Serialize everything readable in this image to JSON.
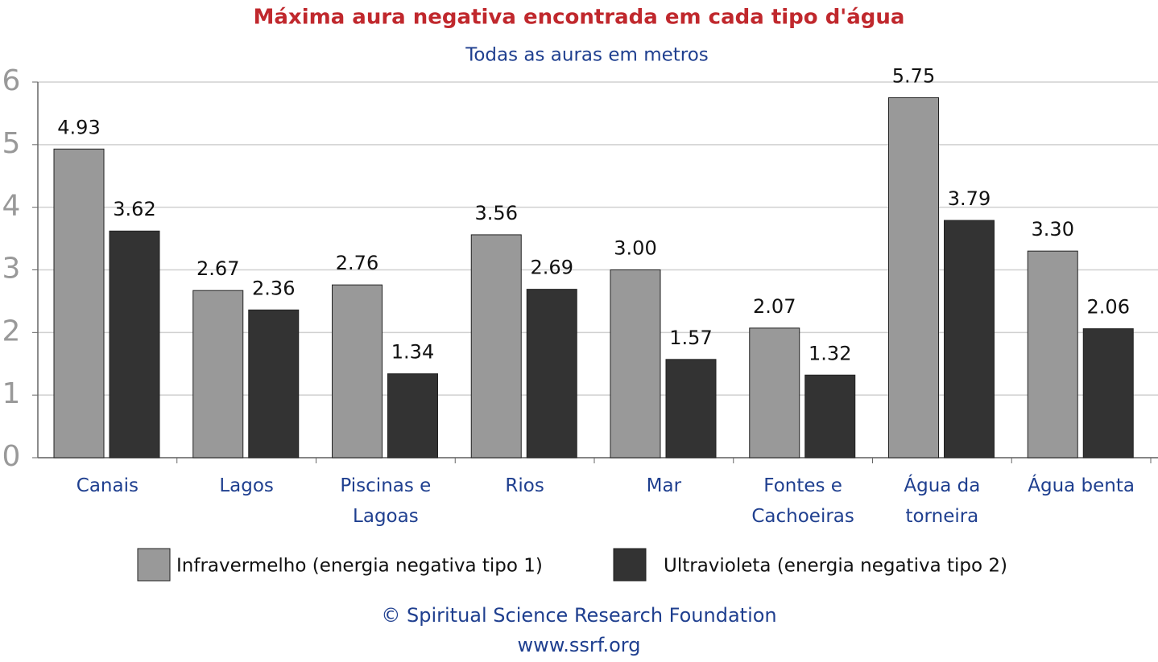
{
  "chart_data": {
    "type": "bar",
    "title": "Máxima aura negativa encontrada em cada tipo d'água",
    "subtitle": "Todas as auras em metros",
    "categories": [
      "Canais",
      "Lagos",
      "Piscinas e Lagoas",
      "Rios",
      "Mar",
      "Fontes e Cachoeiras",
      "Água da torneira",
      "Água benta"
    ],
    "series": [
      {
        "name": "Infravermelho (energia negativa tipo 1)",
        "color": "#999999",
        "values": [
          4.93,
          2.67,
          2.76,
          3.56,
          3.0,
          2.07,
          5.75,
          3.3
        ],
        "value_labels": [
          "4.93",
          "2.67",
          "2.76",
          "3.56",
          "3.00",
          "2.07",
          "5.75",
          "3.30"
        ]
      },
      {
        "name": "Ultravioleta (energia negativa tipo 2)",
        "color": "#333333",
        "values": [
          3.62,
          2.36,
          1.34,
          2.69,
          1.57,
          1.32,
          3.79,
          2.06
        ],
        "value_labels": [
          "3.62",
          "2.36",
          "1.34",
          "2.69",
          "1.57",
          "1.32",
          "3.79",
          "2.06"
        ]
      }
    ],
    "ylim": [
      0,
      6
    ],
    "yticks": [
      0,
      1,
      2,
      3,
      4,
      5,
      6
    ],
    "grid": true,
    "footer": [
      "© Spiritual Science Research Foundation",
      "www.ssrf.org"
    ]
  }
}
